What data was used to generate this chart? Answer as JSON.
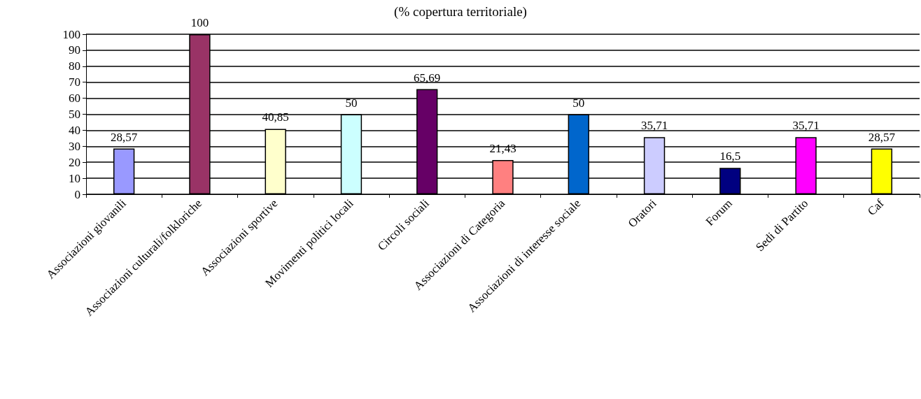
{
  "chart_data": {
    "type": "bar",
    "title": "(% copertura territoriale)",
    "categories": [
      "Associazioni giovanili",
      "Associazioni culturali/folkloriche",
      "Associazioni sportive",
      "Movimenti politici locali",
      "Circoli sociali",
      "Associazioni di Categoria",
      "Associazioni di interesse sociale",
      "Oratori",
      "Forum",
      "Sedi di Partito",
      "Caf"
    ],
    "values": [
      28.57,
      100,
      40.85,
      50,
      65.69,
      21.43,
      50,
      35.71,
      16.5,
      35.71,
      28.57
    ],
    "value_labels": [
      "28,57",
      "100",
      "40,85",
      "50",
      "65,69",
      "21,43",
      "50",
      "35,71",
      "16,5",
      "35,71",
      "28,57"
    ],
    "colors": [
      "#9999ff",
      "#993366",
      "#ffffcc",
      "#ccffff",
      "#660066",
      "#ff8080",
      "#0066cc",
      "#ccccff",
      "#000080",
      "#ff00ff",
      "#ffff00"
    ],
    "ylim": [
      0,
      100
    ],
    "yticks": [
      0,
      10,
      20,
      30,
      40,
      50,
      60,
      70,
      80,
      90,
      100
    ],
    "grid": "y"
  }
}
